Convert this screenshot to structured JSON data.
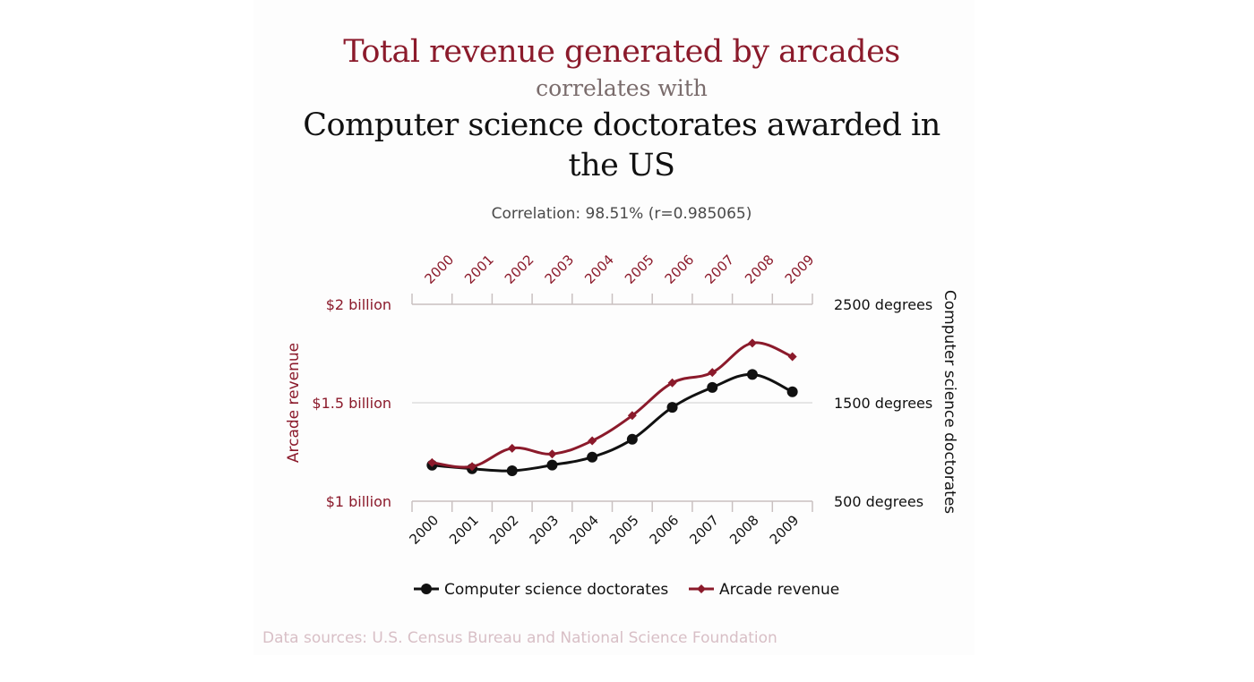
{
  "header": {
    "title_main": "Total revenue generated by arcades",
    "title_connector": "correlates with",
    "title_sub": "Computer science doctorates awarded in the US",
    "correlation": "Correlation: 98.51% (r=0.985065)"
  },
  "footer": {
    "source": "Data sources: U.S. Census Bureau and National Science Foundation"
  },
  "colors": {
    "arcade": "#8b1a2b",
    "doctorates": "#111111",
    "grid": "#cfcfcf",
    "axis": "#c9c0c0"
  },
  "chart_data": {
    "type": "line",
    "title": "Total revenue generated by arcades correlates with Computer science doctorates awarded in the US",
    "subtitle": "Correlation: 98.51% (r=0.985065)",
    "x": [
      "2000",
      "2001",
      "2002",
      "2003",
      "2004",
      "2005",
      "2006",
      "2007",
      "2008",
      "2009"
    ],
    "y_left": {
      "label": "Arcade revenue",
      "ticks": [
        "$1 billion",
        "$1.5 billion",
        "$2 billion"
      ],
      "tick_values": [
        1.0,
        1.5,
        2.0
      ],
      "range": [
        1.0,
        2.0
      ]
    },
    "y_right": {
      "label": "Computer science doctorates",
      "ticks": [
        "500 degrees",
        "1500 degrees",
        "2500 degrees"
      ],
      "tick_values": [
        500,
        1500,
        2500
      ],
      "range": [
        500,
        2500
      ]
    },
    "series": [
      {
        "name": "Computer science doctorates",
        "axis": "right",
        "marker": "circle",
        "values": [
          866,
          830,
          809,
          867,
          948,
          1129,
          1453,
          1656,
          1787,
          1611
        ]
      },
      {
        "name": "Arcade revenue",
        "axis": "left",
        "marker": "diamond",
        "values": [
          1.196,
          1.176,
          1.269,
          1.24,
          1.307,
          1.435,
          1.601,
          1.654,
          1.803,
          1.734
        ]
      }
    ],
    "grid": true,
    "legend": "bottom"
  }
}
